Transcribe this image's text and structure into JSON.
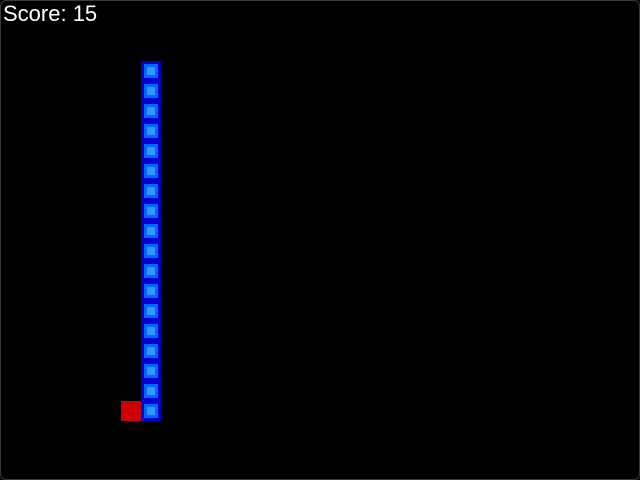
{
  "score": {
    "label": "Score: 15"
  },
  "grid": {
    "cols": 32,
    "rows": 24
  },
  "colors": {
    "background": "#000000",
    "snake_outer": "#0000cc",
    "snake_body": "#0066ff",
    "snake_inner": "#3399ff",
    "food": "#cc0000"
  },
  "snake": {
    "segments": [
      [
        7,
        3
      ],
      [
        7,
        4
      ],
      [
        7,
        5
      ],
      [
        7,
        6
      ],
      [
        7,
        7
      ],
      [
        7,
        8
      ],
      [
        7,
        9
      ],
      [
        7,
        10
      ],
      [
        7,
        11
      ],
      [
        7,
        12
      ],
      [
        7,
        13
      ],
      [
        7,
        14
      ],
      [
        7,
        15
      ],
      [
        7,
        16
      ],
      [
        7,
        17
      ],
      [
        7,
        18
      ],
      [
        7,
        19
      ],
      [
        7,
        20
      ]
    ]
  },
  "food": {
    "position": [
      6,
      20
    ]
  }
}
